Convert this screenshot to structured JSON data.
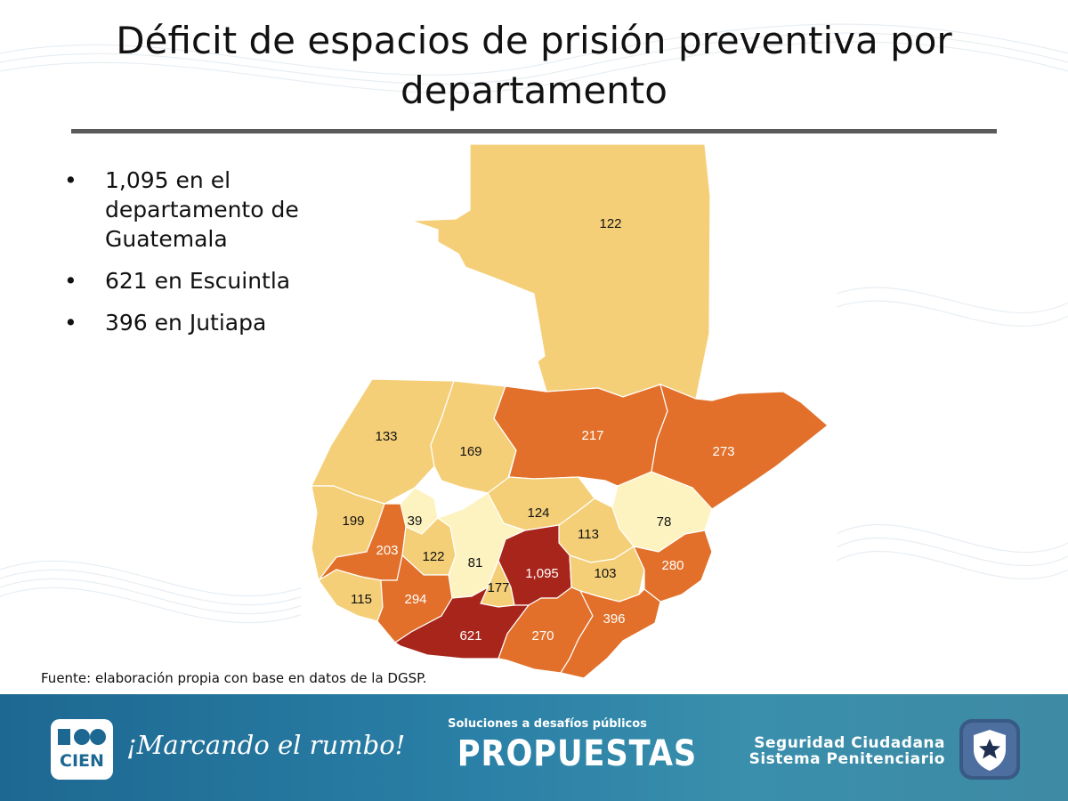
{
  "title": "Déficit de espacios de prisión preventiva por departamento",
  "bullets": [
    "1,095 en el departamento de Guatemala",
    "621 en Escuintla",
    "396 en Jutiapa"
  ],
  "source": "Fuente: elaboración propia con base en datos de la DGSP.",
  "colors": {
    "very_low": "#fdf3c0",
    "low": "#f5cf78",
    "medium": "#e2702a",
    "high": "#a8251c",
    "footer": "#2a80a6"
  },
  "map": {
    "departments": [
      {
        "value": "122",
        "level": "low"
      },
      {
        "value": "133",
        "level": "low"
      },
      {
        "value": "169",
        "level": "low"
      },
      {
        "value": "217",
        "level": "medium"
      },
      {
        "value": "273",
        "level": "medium"
      },
      {
        "value": "199",
        "level": "low"
      },
      {
        "value": "39",
        "level": "very_low"
      },
      {
        "value": "124",
        "level": "low"
      },
      {
        "value": "78",
        "level": "very_low"
      },
      {
        "value": "203",
        "level": "medium"
      },
      {
        "value": "122",
        "level": "low"
      },
      {
        "value": "81",
        "level": "very_low"
      },
      {
        "value": "113",
        "level": "low"
      },
      {
        "value": "1,095",
        "level": "high"
      },
      {
        "value": "177",
        "level": "low"
      },
      {
        "value": "103",
        "level": "low"
      },
      {
        "value": "280",
        "level": "medium"
      },
      {
        "value": "115",
        "level": "low"
      },
      {
        "value": "294",
        "level": "medium"
      },
      {
        "value": "621",
        "level": "high"
      },
      {
        "value": "270",
        "level": "medium"
      },
      {
        "value": "396",
        "level": "medium"
      }
    ]
  },
  "footer": {
    "logo_text": "CIEN",
    "slogan": "¡Marcando el rumbo!",
    "propuestas_sub": "Soluciones a desafíos públicos",
    "propuestas": "PROPUESTAS",
    "program_line1": "Seguridad Ciudadana",
    "program_line2": "Sistema Penitenciario",
    "badge_icon": "star-shield-icon"
  }
}
